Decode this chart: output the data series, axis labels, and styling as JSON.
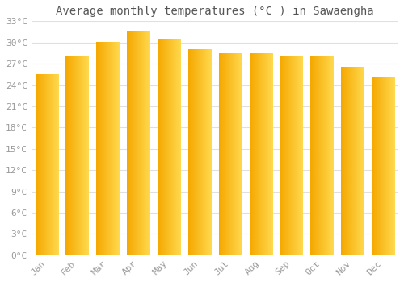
{
  "months": [
    "Jan",
    "Feb",
    "Mar",
    "Apr",
    "May",
    "Jun",
    "Jul",
    "Aug",
    "Sep",
    "Oct",
    "Nov",
    "Dec"
  ],
  "values": [
    25.5,
    28.0,
    30.0,
    31.5,
    30.5,
    29.0,
    28.5,
    28.5,
    28.0,
    28.0,
    26.5,
    25.0
  ],
  "bar_color_left": "#F5A800",
  "bar_color_right": "#FFD94E",
  "title": "Average monthly temperatures (°C ) in Sawaengha",
  "ylim": [
    0,
    33
  ],
  "yticks": [
    0,
    3,
    6,
    9,
    12,
    15,
    18,
    21,
    24,
    27,
    30,
    33
  ],
  "ytick_labels": [
    "0°C",
    "3°C",
    "6°C",
    "9°C",
    "12°C",
    "15°C",
    "18°C",
    "21°C",
    "24°C",
    "27°C",
    "30°C",
    "33°C"
  ],
  "bg_color": "#ffffff",
  "grid_color": "#e0e0e0",
  "title_fontsize": 10,
  "tick_fontsize": 8,
  "title_color": "#555555",
  "tick_color": "#999999",
  "bar_width": 0.75,
  "n_gradient_cols": 50
}
